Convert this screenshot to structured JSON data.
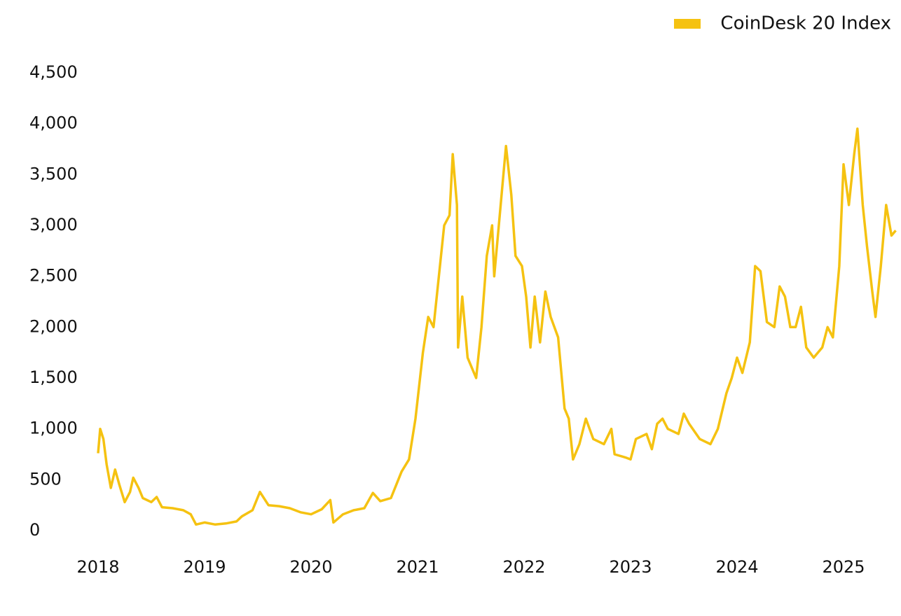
{
  "chart_data": {
    "type": "line",
    "x": [
      2018.0,
      2018.02,
      2018.05,
      2018.08,
      2018.12,
      2018.16,
      2018.2,
      2018.25,
      2018.3,
      2018.33,
      2018.38,
      2018.42,
      2018.5,
      2018.55,
      2018.6,
      2018.7,
      2018.8,
      2018.87,
      2018.92,
      2019.0,
      2019.1,
      2019.2,
      2019.3,
      2019.35,
      2019.45,
      2019.52,
      2019.6,
      2019.7,
      2019.8,
      2019.9,
      2020.0,
      2020.1,
      2020.18,
      2020.21,
      2020.3,
      2020.4,
      2020.5,
      2020.58,
      2020.65,
      2020.75,
      2020.85,
      2020.92,
      2020.98,
      2021.05,
      2021.1,
      2021.15,
      2021.2,
      2021.25,
      2021.3,
      2021.33,
      2021.37,
      2021.38,
      2021.42,
      2021.47,
      2021.55,
      2021.6,
      2021.65,
      2021.7,
      2021.72,
      2021.78,
      2021.83,
      2021.88,
      2021.92,
      2021.98,
      2022.02,
      2022.06,
      2022.1,
      2022.15,
      2022.2,
      2022.25,
      2022.32,
      2022.38,
      2022.42,
      2022.46,
      2022.52,
      2022.58,
      2022.65,
      2022.75,
      2022.82,
      2022.85,
      2022.95,
      2023.0,
      2023.05,
      2023.15,
      2023.2,
      2023.25,
      2023.3,
      2023.35,
      2023.45,
      2023.5,
      2023.55,
      2023.65,
      2023.75,
      2023.82,
      2023.9,
      2023.95,
      2024.0,
      2024.05,
      2024.12,
      2024.17,
      2024.22,
      2024.28,
      2024.35,
      2024.4,
      2024.45,
      2024.5,
      2024.55,
      2024.6,
      2024.65,
      2024.72,
      2024.8,
      2024.85,
      2024.9,
      2024.96,
      2025.0,
      2025.05,
      2025.1,
      2025.13,
      2025.18,
      2025.22,
      2025.27,
      2025.3,
      2025.35,
      2025.4,
      2025.45,
      2025.49
    ],
    "series": [
      {
        "name": "CoinDesk 20 Index",
        "color": "#f5c211",
        "values": [
          760,
          1000,
          900,
          650,
          420,
          600,
          450,
          280,
          380,
          520,
          420,
          320,
          280,
          330,
          230,
          220,
          200,
          160,
          60,
          80,
          60,
          70,
          90,
          140,
          200,
          380,
          250,
          240,
          220,
          180,
          160,
          210,
          300,
          80,
          160,
          200,
          220,
          370,
          290,
          320,
          580,
          700,
          1100,
          1750,
          2100,
          2000,
          2500,
          3000,
          3100,
          3700,
          3200,
          1800,
          2300,
          1700,
          1500,
          2000,
          2700,
          3000,
          2500,
          3200,
          3780,
          3300,
          2700,
          2600,
          2300,
          1800,
          2300,
          1850,
          2350,
          2100,
          1900,
          1200,
          1100,
          700,
          850,
          1100,
          900,
          850,
          1000,
          750,
          720,
          700,
          900,
          950,
          800,
          1050,
          1100,
          1000,
          950,
          1150,
          1050,
          900,
          850,
          1000,
          1350,
          1500,
          1700,
          1550,
          1850,
          2600,
          2550,
          2050,
          2000,
          2400,
          2300,
          2000,
          2000,
          2200,
          1800,
          1700,
          1800,
          2000,
          1900,
          2600,
          3600,
          3200,
          3700,
          3950,
          3200,
          2800,
          2350,
          2100,
          2600,
          3200,
          2900,
          2950
        ]
      }
    ],
    "xlim": [
      2018,
      2025.5
    ],
    "xticks": [
      2018,
      2019,
      2020,
      2021,
      2022,
      2023,
      2024,
      2025
    ],
    "ylim": [
      0,
      4500
    ],
    "yticks": [
      0,
      500,
      {
        "value": 1000,
        "label": "1,000"
      },
      {
        "value": 1500,
        "label": "1,500"
      },
      {
        "value": 2000,
        "label": "2,000"
      },
      {
        "value": 2500,
        "label": "2,500"
      },
      {
        "value": 3000,
        "label": "3,000"
      },
      {
        "value": 3500,
        "label": "3,500"
      },
      {
        "value": 4000,
        "label": "4,000"
      },
      {
        "value": 4500,
        "label": "4,500"
      }
    ],
    "grid": false,
    "legend": "top-right"
  }
}
